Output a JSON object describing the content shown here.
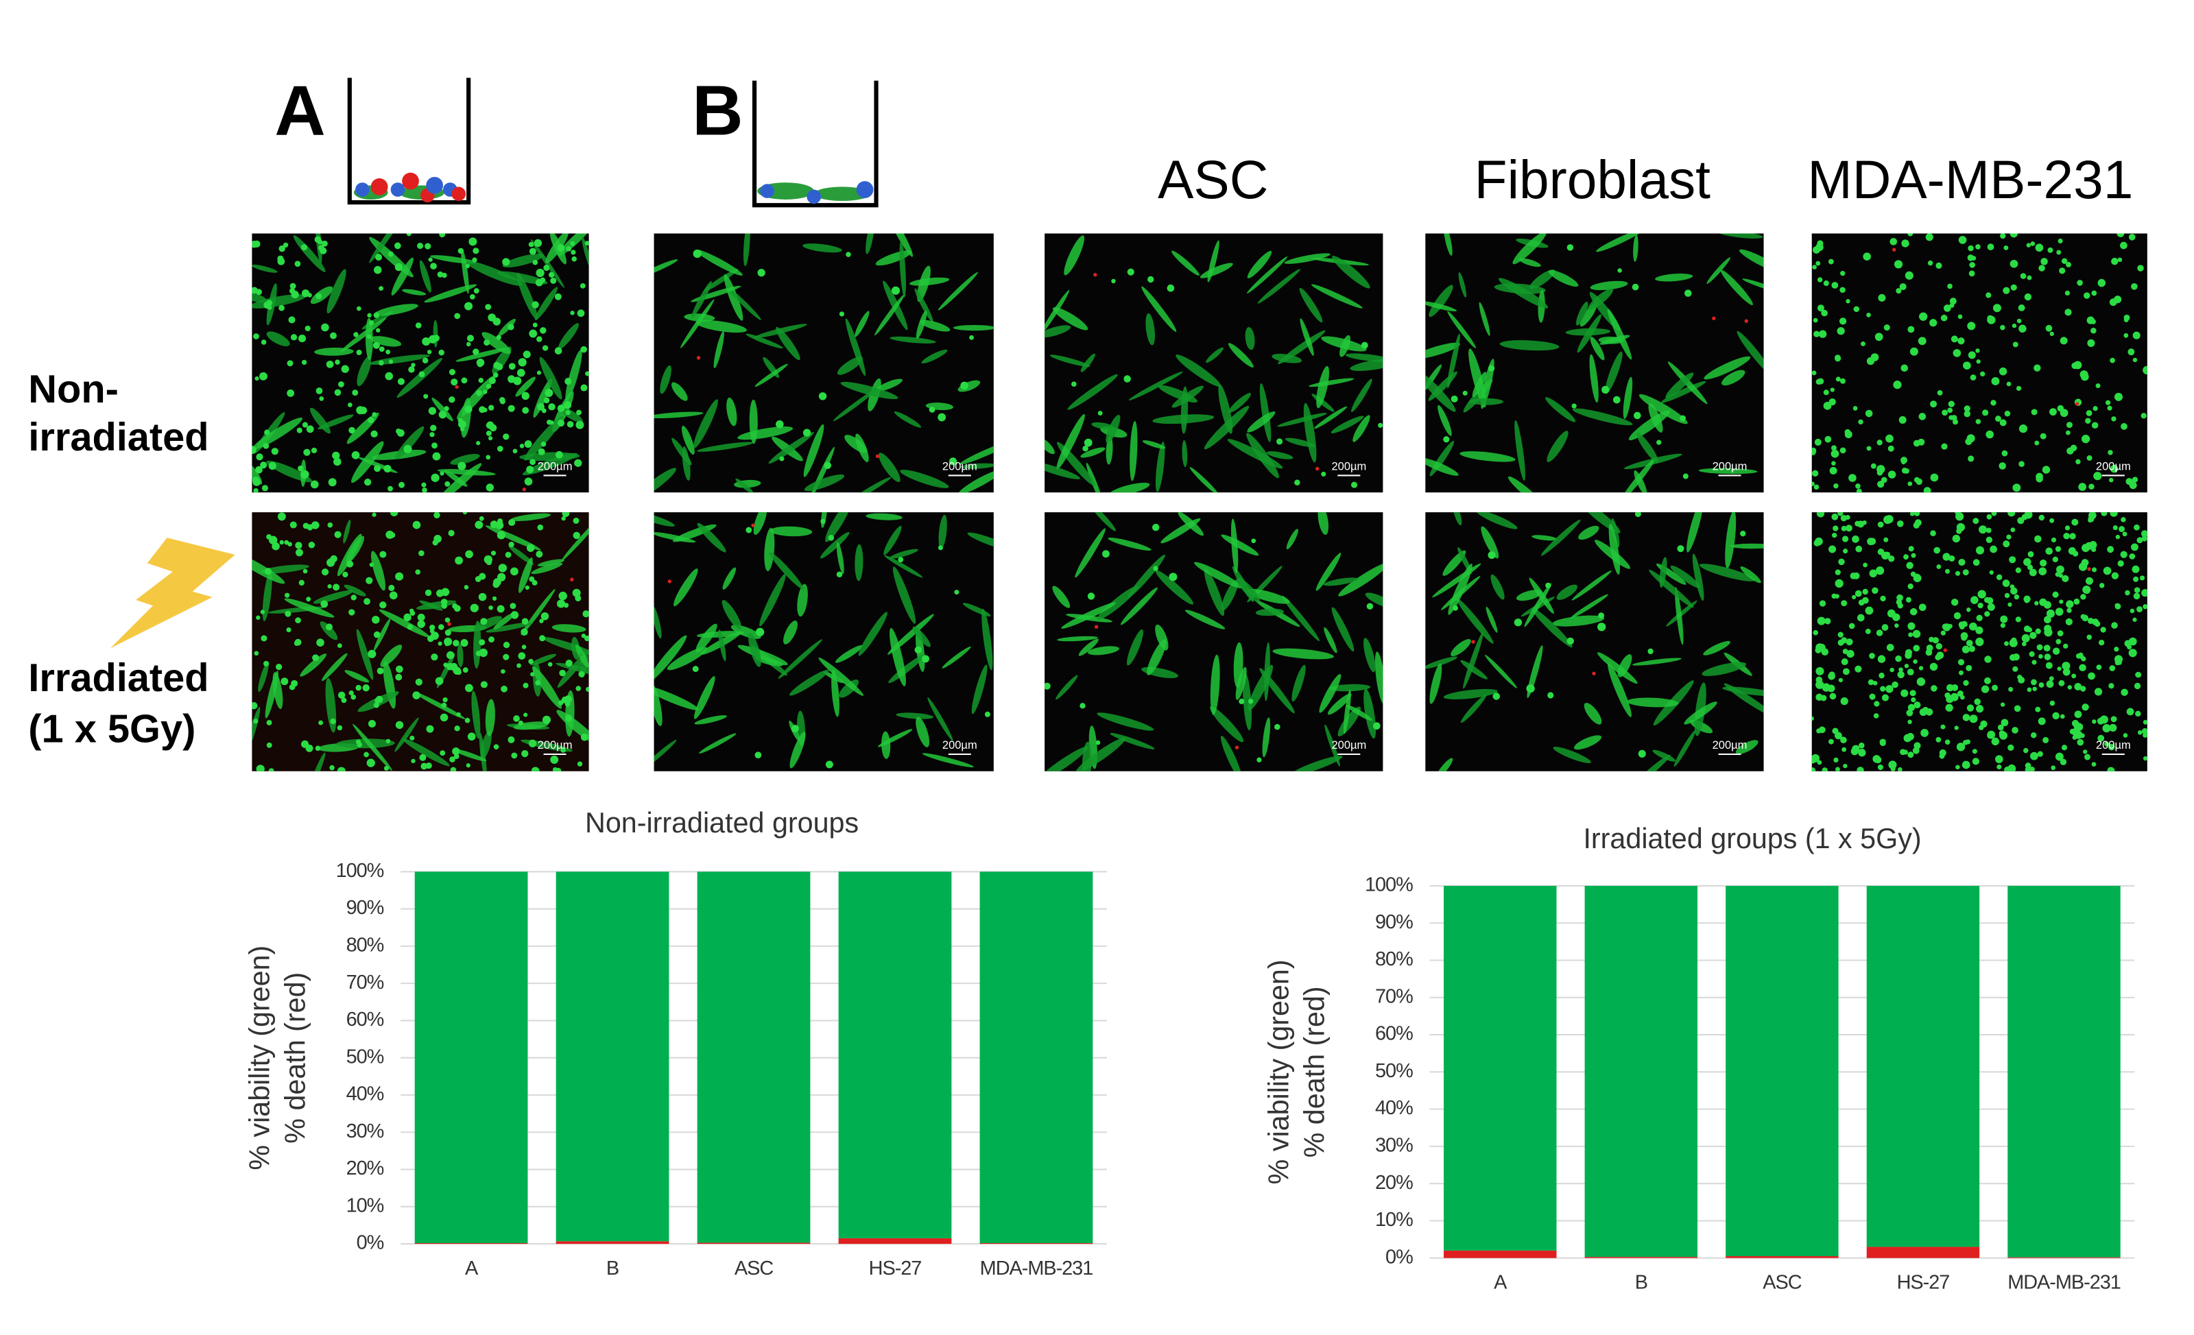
{
  "panel_labels": [
    "A",
    "B"
  ],
  "column_labels": [
    "ASC",
    "Fibroblast",
    "MDA-MB-231"
  ],
  "row_labels": [
    [
      "Non-",
      "irradiated"
    ],
    [
      "Irradiated",
      "(1 x 5Gy)"
    ]
  ],
  "scale_bar": "200µm",
  "chart_data": [
    {
      "type": "bar",
      "stacked": true,
      "title": "Non-irradiated groups",
      "y_label": [
        "% viability (green)",
        "% death (red)"
      ],
      "categories": [
        "A",
        "B",
        "ASC",
        "HS-27",
        "MDA-MB-231"
      ],
      "series": [
        {
          "color": "#e02020",
          "values": [
            0.2,
            0.7,
            0.3,
            1.5,
            0.2
          ]
        },
        {
          "color": "#00b050",
          "values": [
            99.8,
            99.3,
            99.7,
            98.5,
            99.8
          ]
        }
      ],
      "ylim": [
        0,
        100
      ],
      "yticks": [
        {
          "value": 0,
          "label": "0%"
        },
        {
          "value": 10,
          "label": "10%"
        },
        {
          "value": 20,
          "label": "20%"
        },
        {
          "value": 30,
          "label": "30%"
        },
        {
          "value": 40,
          "label": "40%"
        },
        {
          "value": 50,
          "label": "50%"
        },
        {
          "value": 60,
          "label": "60%"
        },
        {
          "value": 70,
          "label": "70%"
        },
        {
          "value": 80,
          "label": "80%"
        },
        {
          "value": 90,
          "label": "90%"
        },
        {
          "value": 100,
          "label": "100%"
        }
      ],
      "grid": true
    },
    {
      "type": "bar",
      "stacked": true,
      "title": "Irradiated groups (1 x 5Gy)",
      "y_label": [
        "% viability (green)",
        "% death (red)"
      ],
      "categories": [
        "A",
        "B",
        "ASC",
        "HS-27",
        "MDA-MB-231"
      ],
      "series": [
        {
          "color": "#e02020",
          "values": [
            2,
            0.3,
            0.5,
            3,
            0.2
          ]
        },
        {
          "color": "#00b050",
          "values": [
            98,
            99.7,
            99.5,
            97,
            99.8
          ]
        }
      ],
      "ylim": [
        0,
        100
      ],
      "yticks": [
        {
          "value": 0,
          "label": "0%"
        },
        {
          "value": 10,
          "label": "10%"
        },
        {
          "value": 20,
          "label": "20%"
        },
        {
          "value": 30,
          "label": "30%"
        },
        {
          "value": 40,
          "label": "40%"
        },
        {
          "value": 50,
          "label": "50%"
        },
        {
          "value": 60,
          "label": "60%"
        },
        {
          "value": 70,
          "label": "70%"
        },
        {
          "value": 80,
          "label": "80%"
        },
        {
          "value": 90,
          "label": "90%"
        },
        {
          "value": 100,
          "label": "100%"
        }
      ],
      "grid": true
    }
  ]
}
